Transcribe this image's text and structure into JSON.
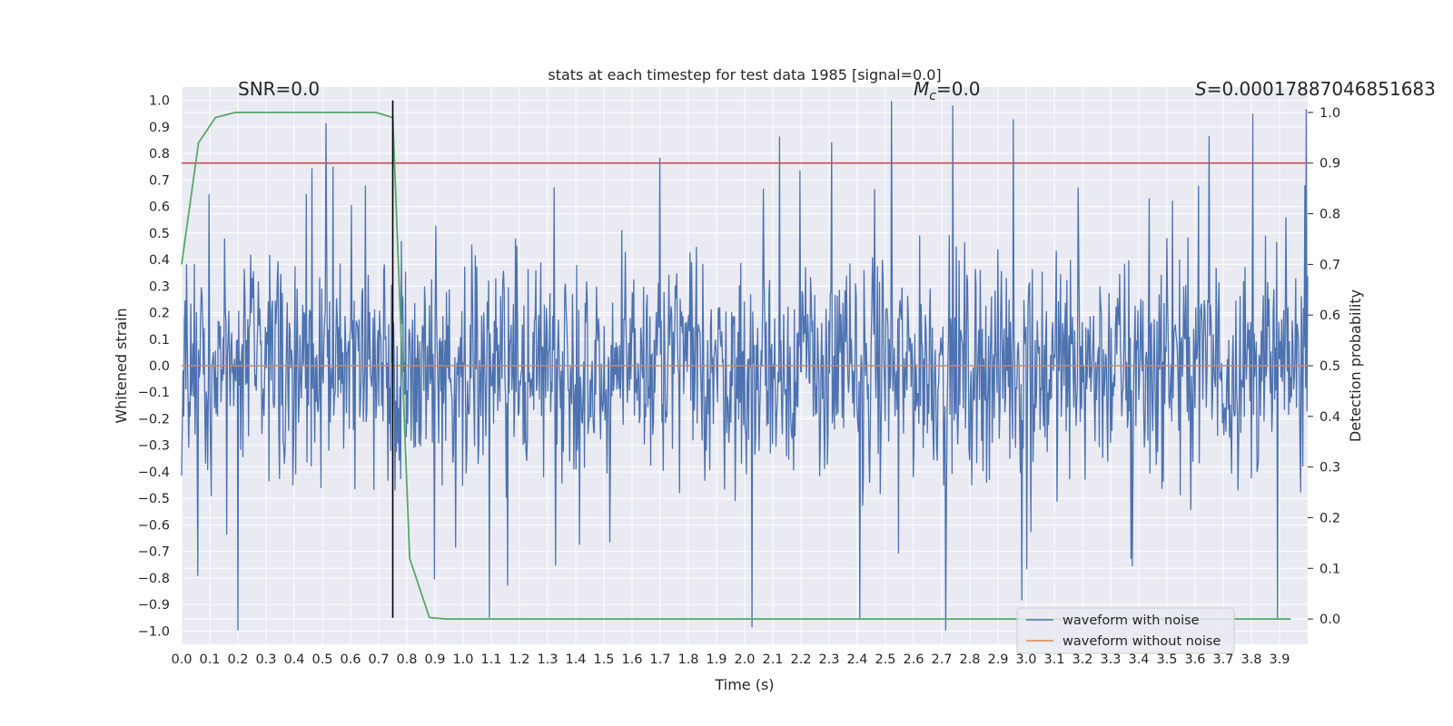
{
  "chart_data": {
    "type": "line",
    "title": "stats at each timestep for test data 1985 [signal=0.0]",
    "xlabel": "Time (s)",
    "ylabel": "Whitened strain",
    "y2label": "Detection probability",
    "xlim": [
      0.0,
      4.0
    ],
    "ylim": [
      -1.05,
      1.05
    ],
    "y2lim": [
      -0.05,
      1.05
    ],
    "x_ticks": [
      0.0,
      0.1,
      0.2,
      0.3,
      0.4,
      0.5,
      0.6,
      0.7,
      0.8,
      0.9,
      1.0,
      1.1,
      1.2,
      1.3,
      1.4,
      1.5,
      1.6,
      1.7,
      1.8,
      1.9,
      2.0,
      2.1,
      2.2,
      2.3,
      2.4,
      2.5,
      2.6,
      2.7,
      2.8,
      2.9,
      3.0,
      3.1,
      3.2,
      3.3,
      3.4,
      3.5,
      3.6,
      3.7,
      3.8,
      3.9
    ],
    "x_tick_labels": [
      "0.0",
      "0.1",
      "0.2",
      "0.3",
      "0.4",
      "0.5",
      "0.6",
      "0.7",
      "0.8",
      "0.9",
      "1.0",
      "1.1",
      "1.2",
      "1.3",
      "1.4",
      "1.5",
      "1.6",
      "1.7",
      "1.8",
      "1.9",
      "2.0",
      "2.1",
      "2.2",
      "2.3",
      "2.4",
      "2.5",
      "2.6",
      "2.7",
      "2.8",
      "2.9",
      "3.0",
      "3.1",
      "3.2",
      "3.3",
      "3.4",
      "3.5",
      "3.6",
      "3.7",
      "3.8",
      "3.9"
    ],
    "y_ticks": [
      1.0,
      0.9,
      0.8,
      0.7,
      0.6,
      0.5,
      0.4,
      0.3,
      0.2,
      0.1,
      0.0,
      -0.1,
      -0.2,
      -0.3,
      -0.4,
      -0.5,
      -0.6,
      -0.7,
      -0.8,
      -0.9,
      -1.0
    ],
    "y_tick_labels": [
      "1.0",
      "0.9",
      "0.8",
      "0.7",
      "0.6",
      "0.5",
      "0.4",
      "0.3",
      "0.2",
      "0.1",
      "0.0",
      "−0.1",
      "−0.2",
      "−0.3",
      "−0.4",
      "−0.5",
      "−0.6",
      "−0.7",
      "−0.8",
      "−0.9",
      "−1.0"
    ],
    "y2_ticks": [
      1.0,
      0.9,
      0.8,
      0.7,
      0.6,
      0.5,
      0.4,
      0.3,
      0.2,
      0.1,
      0.0
    ],
    "y2_tick_labels": [
      "1.0",
      "0.9",
      "0.8",
      "0.7",
      "0.6",
      "0.5",
      "0.4",
      "0.3",
      "0.2",
      "0.1",
      "0.0"
    ],
    "series": [
      {
        "name": "waveform with noise",
        "color": "#4c72b0",
        "axis": "left",
        "kind": "noise",
        "x_range": [
          0.0,
          4.0
        ],
        "n_points": 1600,
        "amplitude_typical": 0.45,
        "amplitude_max": 1.0,
        "seed": 1985
      },
      {
        "name": "waveform without noise",
        "color": "#dd8452",
        "axis": "left",
        "x": [
          0.0,
          4.0
        ],
        "values": [
          0.0,
          0.0
        ]
      },
      {
        "name": "detection probability",
        "color": "#55a868",
        "axis": "right",
        "x": [
          0.0,
          0.06,
          0.12,
          0.19,
          0.25,
          0.31,
          0.38,
          0.44,
          0.5,
          0.56,
          0.62,
          0.69,
          0.75,
          0.81,
          0.88,
          0.94,
          1.0,
          1.5,
          2.0,
          2.5,
          3.0,
          3.5,
          3.94
        ],
        "values": [
          0.7,
          0.94,
          0.99,
          1.0,
          1.0,
          1.0,
          1.0,
          1.0,
          1.0,
          1.0,
          1.0,
          1.0,
          0.99,
          0.12,
          0.003,
          0.0,
          0.0,
          0.0,
          0.0,
          0.0,
          0.0,
          0.0,
          0.0
        ]
      }
    ],
    "threshold": {
      "value": 0.9,
      "axis": "right",
      "color": "#c44e52"
    },
    "marker_line": {
      "x": 0.75,
      "y_from": -0.95,
      "y_to": 1.0,
      "color": "#000000"
    },
    "annotations": [
      {
        "text": "SNR=0.0",
        "x": 0.2,
        "y": 1.02
      },
      {
        "text": "M",
        "sub": "c",
        "rest": "=0.0",
        "x": 2.6,
        "y": 1.02
      },
      {
        "text": "S",
        "rest": "=0.00017887046851683",
        "x": 3.6,
        "y": 1.02
      }
    ],
    "legend": {
      "position": "bottom-right",
      "entries": [
        {
          "label": "waveform with noise",
          "color": "#4c72b0"
        },
        {
          "label": "waveform without noise",
          "color": "#dd8452"
        }
      ]
    },
    "grid": true,
    "background": "#eaeaf2"
  }
}
